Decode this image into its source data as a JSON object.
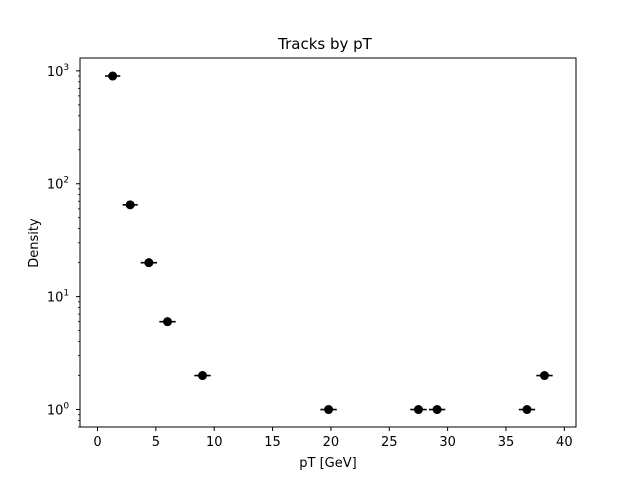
{
  "chart_data": {
    "type": "scatter",
    "title": "Tracks by pT",
    "xlabel": "pT [GeV]",
    "ylabel": "Density",
    "xlim": [
      -1.5,
      41
    ],
    "ylim": [
      0.7,
      1300
    ],
    "yscale": "log",
    "x_ticks": [
      0,
      5,
      10,
      15,
      20,
      25,
      30,
      35,
      40
    ],
    "x_tick_labels": [
      "0",
      "5",
      "10",
      "15",
      "20",
      "25",
      "30",
      "35",
      "40"
    ],
    "y_ticks": [
      1,
      10,
      100,
      1000
    ],
    "y_tick_labels": [
      {
        "base": "10",
        "exp": "0"
      },
      {
        "base": "10",
        "exp": "1"
      },
      {
        "base": "10",
        "exp": "2"
      },
      {
        "base": "10",
        "exp": "3"
      }
    ],
    "grid": false,
    "legend": "none",
    "series": [
      {
        "points": [
          {
            "x": 1.3,
            "y": 900,
            "xerr": 0.65
          },
          {
            "x": 2.8,
            "y": 65,
            "xerr": 0.65
          },
          {
            "x": 4.4,
            "y": 20,
            "xerr": 0.7
          },
          {
            "x": 6.0,
            "y": 6,
            "xerr": 0.7
          },
          {
            "x": 9.0,
            "y": 2,
            "xerr": 0.7
          },
          {
            "x": 19.8,
            "y": 1,
            "xerr": 0.7
          },
          {
            "x": 27.5,
            "y": 1,
            "xerr": 0.7
          },
          {
            "x": 29.1,
            "y": 1,
            "xerr": 0.7
          },
          {
            "x": 36.8,
            "y": 1,
            "xerr": 0.7
          },
          {
            "x": 38.3,
            "y": 2,
            "xerr": 0.7
          }
        ]
      }
    ],
    "colors": {
      "marker": "#000000",
      "axes": "#000000",
      "background": "#ffffff"
    }
  }
}
